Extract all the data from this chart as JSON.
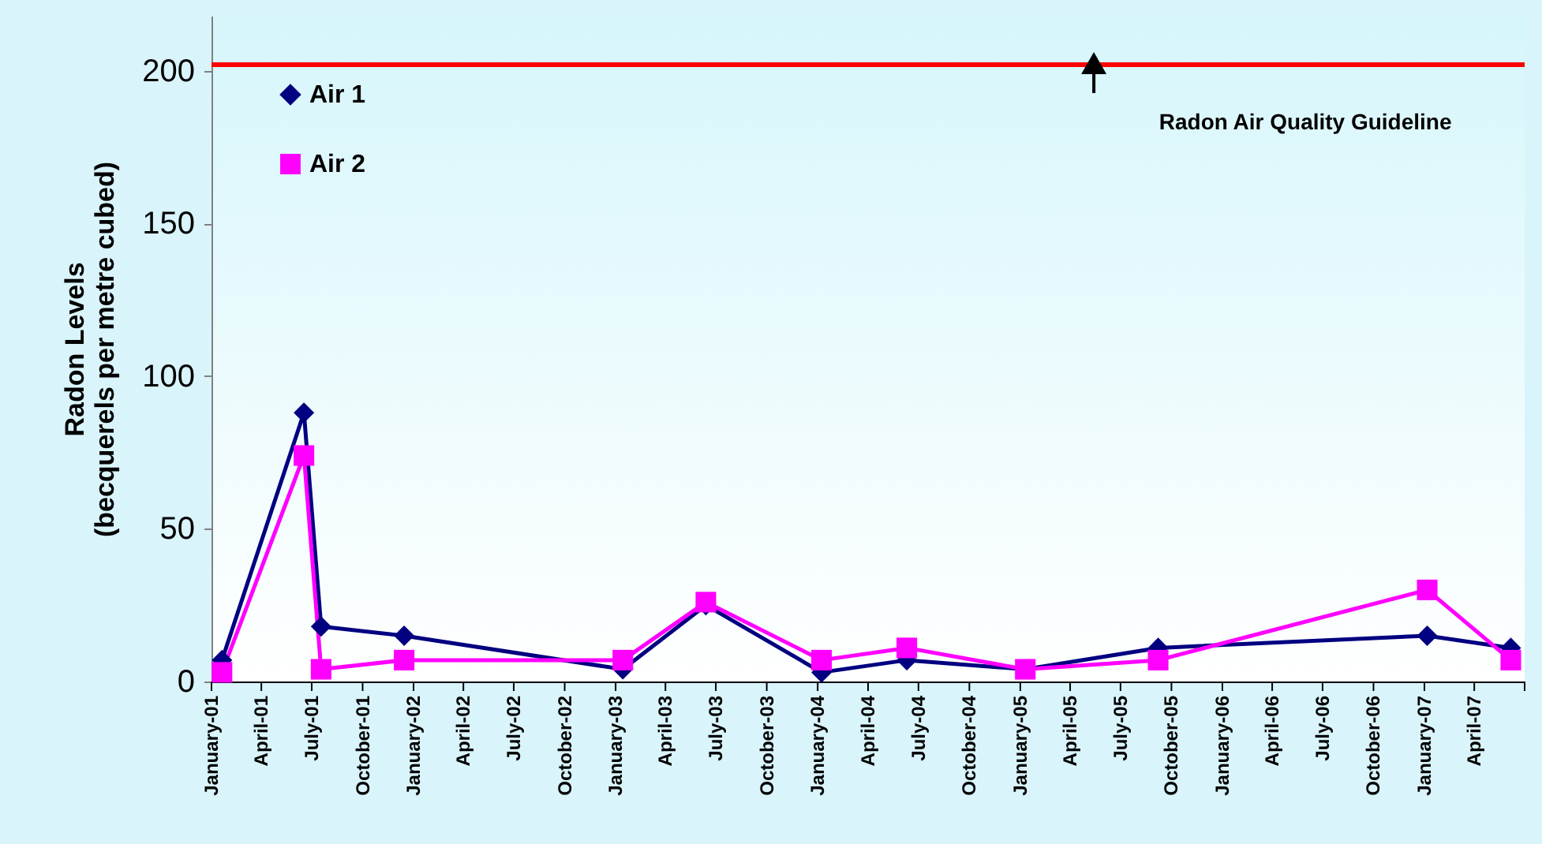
{
  "chart_data": {
    "type": "line",
    "ylabel": "Radon Levels\n(becquerels per metre cubed)",
    "x": [
      "2001-01-20",
      "2001-06-17",
      "2001-07-18",
      "2001-12-15",
      "2003-01-14",
      "2003-06-13",
      "2004-01-08",
      "2004-06-10",
      "2005-01-10",
      "2005-09-07",
      "2007-01-06",
      "2007-06-06"
    ],
    "series": [
      {
        "name": "Air 1",
        "color": "#000080",
        "marker": "diamond",
        "values": [
          7,
          88,
          18,
          15,
          4,
          25,
          3,
          7,
          4,
          11,
          15,
          11
        ]
      },
      {
        "name": "Air 2",
        "color": "#ff00ff",
        "marker": "square",
        "values": [
          3,
          74,
          4,
          7,
          7,
          26,
          7,
          11,
          4,
          7,
          30,
          7
        ]
      }
    ],
    "xlim": [
      "2001-01-01",
      "2007-07-01"
    ],
    "xticks": [
      {
        "value": "2001-01-01",
        "label": "January-01"
      },
      {
        "value": "2001-04-01",
        "label": "April-01"
      },
      {
        "value": "2001-07-01",
        "label": "July-01"
      },
      {
        "value": "2001-10-01",
        "label": "October-01"
      },
      {
        "value": "2002-01-01",
        "label": "January-02"
      },
      {
        "value": "2002-04-01",
        "label": "April-02"
      },
      {
        "value": "2002-07-01",
        "label": "July-02"
      },
      {
        "value": "2002-10-01",
        "label": "October-02"
      },
      {
        "value": "2003-01-01",
        "label": "January-03"
      },
      {
        "value": "2003-04-01",
        "label": "April-03"
      },
      {
        "value": "2003-07-01",
        "label": "July-03"
      },
      {
        "value": "2003-10-01",
        "label": "October-03"
      },
      {
        "value": "2004-01-01",
        "label": "January-04"
      },
      {
        "value": "2004-04-01",
        "label": "April-04"
      },
      {
        "value": "2004-07-01",
        "label": "July-04"
      },
      {
        "value": "2004-10-01",
        "label": "October-04"
      },
      {
        "value": "2005-01-01",
        "label": "January-05"
      },
      {
        "value": "2005-04-01",
        "label": "April-05"
      },
      {
        "value": "2005-07-01",
        "label": "July-05"
      },
      {
        "value": "2005-10-01",
        "label": "October-05"
      },
      {
        "value": "2006-01-01",
        "label": "January-06"
      },
      {
        "value": "2006-04-01",
        "label": "April-06"
      },
      {
        "value": "2006-07-01",
        "label": "July-06"
      },
      {
        "value": "2006-10-01",
        "label": "October-06"
      },
      {
        "value": "2007-01-01",
        "label": "January-07"
      },
      {
        "value": "2007-04-01",
        "label": "April-07"
      },
      {
        "value": "2007-07-01",
        "label": null
      }
    ],
    "ylim": [
      0,
      218
    ],
    "yticks": [
      0,
      50,
      100,
      150,
      200
    ],
    "ref_lines": [
      {
        "axis": "y",
        "value": 202,
        "color": "#ff0000",
        "label": "Radon Air Quality Guideline"
      }
    ],
    "legend": "top left",
    "grid": false,
    "line_style": "solid"
  }
}
